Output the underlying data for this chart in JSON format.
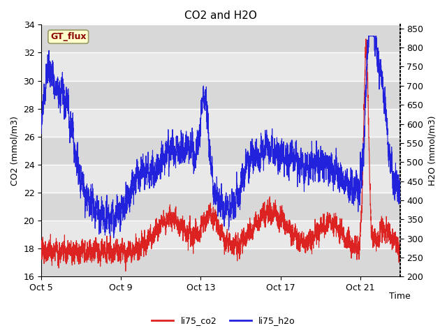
{
  "title": "CO2 and H2O",
  "xlabel": "Time",
  "ylabel_left": "CO2 (mmol/m3)",
  "ylabel_right": "H2O (mmol/m3)",
  "ylim_left": [
    16,
    34
  ],
  "ylim_right": [
    200,
    860
  ],
  "yticks_left": [
    16,
    18,
    20,
    22,
    24,
    26,
    28,
    30,
    32,
    34
  ],
  "yticks_right": [
    200,
    250,
    300,
    350,
    400,
    450,
    500,
    550,
    600,
    650,
    700,
    750,
    800,
    850
  ],
  "xtick_labels": [
    "Oct 5",
    "Oct 9",
    "Oct 13",
    "Oct 17",
    "Oct 21"
  ],
  "annotation_text": "GT_flux",
  "annotation_color": "#8b0000",
  "annotation_bg": "#ffffcc",
  "annotation_border": "#999966",
  "line_co2_color": "#dd2222",
  "line_h2o_color": "#2222dd",
  "legend_co2": "li75_co2",
  "legend_h2o": "li75_h2o",
  "bg_color": "#ffffff",
  "plot_bg_bands": [
    [
      16,
      18,
      "#d8d8d8"
    ],
    [
      18,
      20,
      "#e8e8e8"
    ],
    [
      20,
      22,
      "#d8d8d8"
    ],
    [
      22,
      24,
      "#e8e8e8"
    ],
    [
      24,
      26,
      "#d8d8d8"
    ],
    [
      26,
      28,
      "#e8e8e8"
    ],
    [
      28,
      30,
      "#d8d8d8"
    ],
    [
      30,
      32,
      "#e8e8e8"
    ],
    [
      32,
      34,
      "#d8d8d8"
    ]
  ],
  "grid_color": "#ffffff",
  "n_points": 4000
}
